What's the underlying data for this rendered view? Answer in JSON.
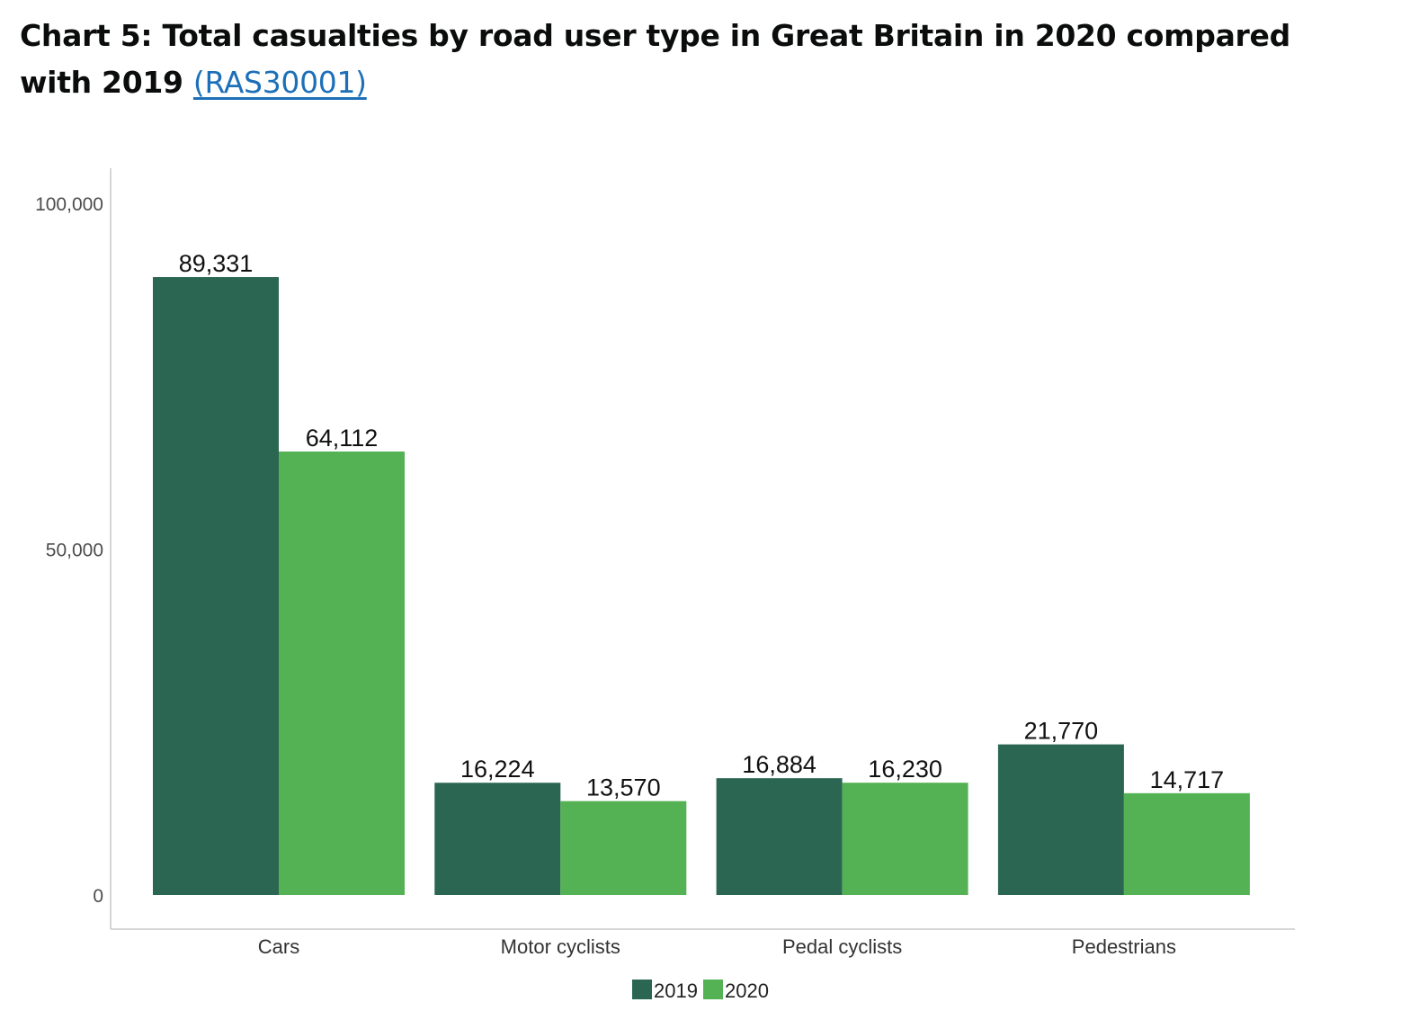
{
  "title": {
    "text": "Chart 5: Total casualties by road user type in Great Britain in 2020 compared with 2019",
    "link_text": "(RAS30001)"
  },
  "chart_data": {
    "type": "bar",
    "categories": [
      "Cars",
      "Motor cyclists",
      "Pedal cyclists",
      "Pedestrians"
    ],
    "series": [
      {
        "name": "2019",
        "color": "#2b6653",
        "values": [
          89331,
          16224,
          16884,
          21770
        ],
        "labels": [
          "89,331",
          "16,224",
          "16,884",
          "21,770"
        ]
      },
      {
        "name": "2020",
        "color": "#54b254",
        "values": [
          64112,
          13570,
          16230,
          14717
        ],
        "labels": [
          "64,112",
          "13,570",
          "16,230",
          "14,717"
        ]
      }
    ],
    "yticks": [
      {
        "value": 0,
        "label": "0"
      },
      {
        "value": 50000,
        "label": "50,000"
      },
      {
        "value": 100000,
        "label": "100,000"
      }
    ],
    "ylim": [
      0,
      100000
    ],
    "xlabel": "",
    "ylabel": "",
    "grid": false,
    "legend_position": "bottom"
  }
}
